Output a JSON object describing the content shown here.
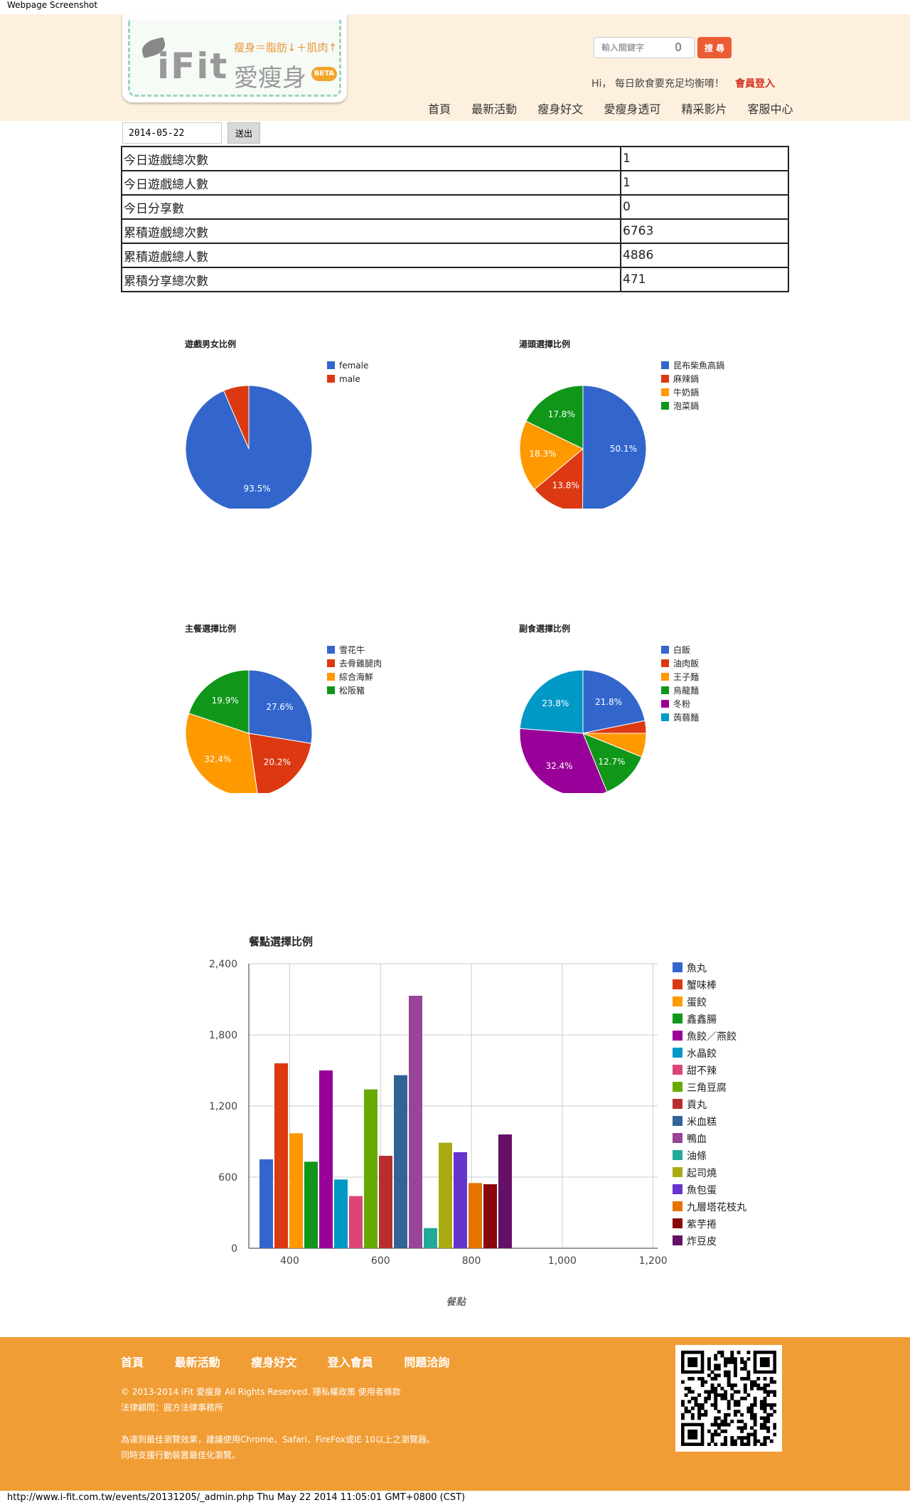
{
  "window": {
    "title": "Webpage Screenshot"
  },
  "header": {
    "logo": {
      "name": "iFit",
      "tagline": "瘦身＝脂肪↓＋肌肉↑",
      "cn_name": "愛瘦身",
      "badge": "BETA"
    },
    "search": {
      "placeholder": "輸入關鍵字",
      "button": "搜 尋"
    },
    "greeting": "Hi， 每日飲食要充足均衡唷！",
    "login": "會員登入",
    "nav": [
      "首頁",
      "最新活動",
      "瘦身好文",
      "愛瘦身透可",
      "精采影片",
      "客服中心"
    ]
  },
  "form": {
    "date_value": "2014-05-22",
    "submit": "送出"
  },
  "stats": [
    {
      "label": "今日遊戲總次數",
      "value": "1"
    },
    {
      "label": "今日遊戲總人數",
      "value": "1"
    },
    {
      "label": "今日分享數",
      "value": "0"
    },
    {
      "label": "累積遊戲總次數",
      "value": "6763"
    },
    {
      "label": "累積遊戲總人數",
      "value": "4886"
    },
    {
      "label": "累積分享總次數",
      "value": "471"
    }
  ],
  "chart_data": [
    {
      "type": "pie",
      "title": "遊戲男女比例",
      "labels": [
        "female",
        "male"
      ],
      "values": [
        93.5,
        6.5
      ],
      "slice_labels": [
        "93.5%",
        ""
      ],
      "colors": [
        "#3366cc",
        "#dc3912"
      ],
      "legend": "right"
    },
    {
      "type": "pie",
      "title": "湯頭選擇比例",
      "labels": [
        "昆布柴魚高鍋",
        "麻辣鍋",
        "牛奶鍋",
        "泡菜鍋"
      ],
      "values": [
        50.1,
        13.8,
        18.3,
        17.8
      ],
      "slice_labels": [
        "50.1%",
        "13.8%",
        "18.3%",
        "17.8%"
      ],
      "colors": [
        "#3366cc",
        "#dc3912",
        "#ff9900",
        "#109618"
      ],
      "legend": "right"
    },
    {
      "type": "pie",
      "title": "主餐選擇比例",
      "labels": [
        "雪花牛",
        "去骨雞腿肉",
        "綜合海鮮",
        "松阪豬"
      ],
      "values": [
        27.6,
        20.2,
        32.4,
        19.9
      ],
      "slice_labels": [
        "27.6%",
        "20.2%",
        "32.4%",
        "19.9%"
      ],
      "colors": [
        "#3366cc",
        "#dc3912",
        "#ff9900",
        "#109618"
      ],
      "legend": "right"
    },
    {
      "type": "pie",
      "title": "副食選擇比例",
      "labels": [
        "白飯",
        "油肉飯",
        "王子麵",
        "烏龍麵",
        "冬粉",
        "蒟蒻麵"
      ],
      "values": [
        21.8,
        3.2,
        6.1,
        12.7,
        32.4,
        23.8
      ],
      "slice_labels": [
        "21.8%",
        "",
        "",
        "12.7%",
        "32.4%",
        "23.8%"
      ],
      "colors": [
        "#3366cc",
        "#dc3912",
        "#ff9900",
        "#109618",
        "#990099",
        "#0099c6"
      ],
      "legend": "right"
    },
    {
      "type": "bar",
      "title": "餐點選擇比例",
      "xlabel": "餐點",
      "x_ticks": [
        "400",
        "600",
        "800",
        "1,000",
        "1,200"
      ],
      "xlim": [
        310,
        1210
      ],
      "y_ticks": [
        "0",
        "600",
        "1,200",
        "1,800",
        "2,400"
      ],
      "ylim": [
        0,
        2400
      ],
      "grid": true,
      "legend": "right",
      "series": [
        {
          "name": "魚丸",
          "value": 750,
          "color": "#3366cc"
        },
        {
          "name": "蟹味棒",
          "value": 1560,
          "color": "#dc3912"
        },
        {
          "name": "蛋餃",
          "value": 970,
          "color": "#ff9900"
        },
        {
          "name": "鑫鑫腸",
          "value": 730,
          "color": "#109618"
        },
        {
          "name": "魚餃／燕餃",
          "value": 1500,
          "color": "#990099"
        },
        {
          "name": "水晶餃",
          "value": 580,
          "color": "#0099c6"
        },
        {
          "name": "甜不辣",
          "value": 440,
          "color": "#dd4477"
        },
        {
          "name": "三角豆腐",
          "value": 1340,
          "color": "#66aa00"
        },
        {
          "name": "貢丸",
          "value": 780,
          "color": "#b82e2e"
        },
        {
          "name": "米血糕",
          "value": 1460,
          "color": "#316395"
        },
        {
          "name": "鴨血",
          "value": 2130,
          "color": "#994499"
        },
        {
          "name": "油條",
          "value": 170,
          "color": "#22aa99"
        },
        {
          "name": "起司燒",
          "value": 890,
          "color": "#aaaa11"
        },
        {
          "name": "魚包蛋",
          "value": 810,
          "color": "#6633cc"
        },
        {
          "name": "九層塔花枝丸",
          "value": 550,
          "color": "#e67300"
        },
        {
          "name": "紫芋捲",
          "value": 540,
          "color": "#8b0707"
        },
        {
          "name": "炸豆皮",
          "value": 960,
          "color": "#651067"
        }
      ]
    }
  ],
  "footer": {
    "nav": [
      "首頁",
      "最新活動",
      "瘦身好文",
      "登入會員",
      "問題洽詢"
    ],
    "copyright": "© 2013-2014 iFit 愛瘦身 All Rights Reserved.  隱私權政策  使用者條款",
    "legal": "法律顧問：圓方法律事務所",
    "browser_note": "為達到最佳瀏覽效果，建議使用Chrome、Safari、FireFox或IE 10以上之瀏覽器。",
    "mobile_note": "同時支援行動裝置最佳化瀏覽。"
  },
  "status_bar": "http://www.i-fit.com.tw/events/20131205/_admin.php Thu May 22 2014 11:05:01 GMT+0800 (CST)"
}
